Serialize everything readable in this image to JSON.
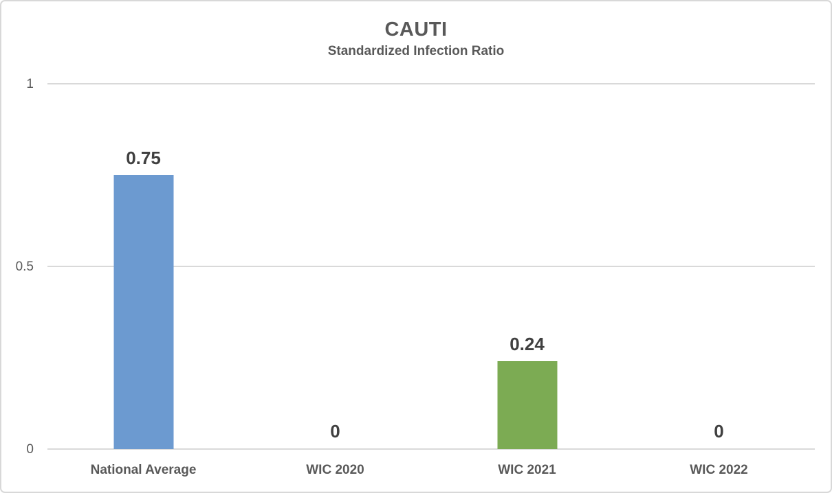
{
  "chart_data": {
    "type": "bar",
    "title": "CAUTI",
    "subtitle": "Standardized Infection Ratio",
    "categories": [
      "National Average",
      "WIC 2020",
      "WIC 2021",
      "WIC 2022"
    ],
    "values": [
      0.75,
      0,
      0.24,
      0
    ],
    "data_labels": [
      "0.75",
      "0",
      "0.24",
      "0"
    ],
    "bar_colors": [
      "#6c9ad0",
      null,
      "#7cab53",
      null
    ],
    "xlabel": "",
    "ylabel": "",
    "ylim": [
      0,
      1
    ],
    "yticks": [
      {
        "value": 0,
        "label": "0"
      },
      {
        "value": 0.5,
        "label": "0.5"
      },
      {
        "value": 1,
        "label": "1"
      }
    ],
    "grid": true,
    "legend": false
  },
  "colors": {
    "title_text": "#595959",
    "axis_text": "#595959",
    "data_label_text": "#404040",
    "gridline": "#d9d9d9",
    "frame_border": "#d8d8d8",
    "background": "#ffffff",
    "bar_blue": "#6c9ad0",
    "bar_green": "#7cab53"
  }
}
